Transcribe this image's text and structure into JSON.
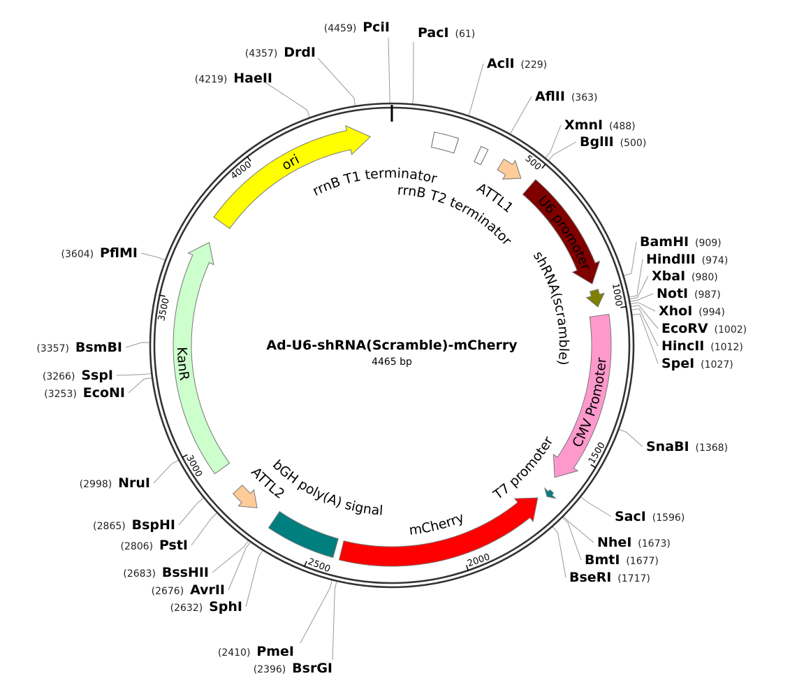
{
  "plasmid": {
    "name": "Ad-U6-shRNA(Scramble)-mCherry",
    "length_label": "4465 bp",
    "length_bp": 4465
  },
  "features": [
    {
      "name": "ori",
      "start": 3792,
      "end": 4392,
      "direction": "forward",
      "shape": "arrow",
      "color": "#ffff00",
      "label_color": "#000000"
    },
    {
      "name": "rrnB T1 terminator",
      "start": 140,
      "end": 222,
      "direction": "none",
      "shape": "box",
      "color": "#ffffff",
      "label_color": "#000000"
    },
    {
      "name": "rrnB T2 terminator",
      "start": 300,
      "end": 325,
      "direction": "none",
      "shape": "box",
      "color": "#ffffff",
      "label_color": "#000000"
    },
    {
      "name": "ATTL1",
      "start": 385,
      "end": 468,
      "direction": "forward",
      "shape": "arrow",
      "color": "#ffcc99",
      "label_color": "#000000"
    },
    {
      "name": "U6 promoter",
      "start": 508,
      "end": 905,
      "direction": "forward",
      "shape": "arrow",
      "color": "#800000",
      "label_color": "#ffffff"
    },
    {
      "name": "shRNA(scramble)",
      "start": 928,
      "end": 985,
      "direction": "forward",
      "shape": "arrow",
      "color": "#808000",
      "label_color": "#000000"
    },
    {
      "name": "CMV Promoter",
      "start": 1015,
      "end": 1600,
      "direction": "forward",
      "shape": "arrow",
      "color": "#ff99cc",
      "label_color": "#000000"
    },
    {
      "name": "T7 promoter",
      "start": 1642,
      "end": 1665,
      "direction": "forward",
      "shape": "arrow",
      "color": "#008080",
      "label_color": "#000000"
    },
    {
      "name": "mCherry",
      "start": 1690,
      "end": 2404,
      "direction": "reverse",
      "shape": "arrow",
      "color": "#ff0000",
      "label_color": "#000000"
    },
    {
      "name": "bGH poly(A) signal",
      "start": 2425,
      "end": 2655,
      "direction": "none",
      "shape": "box",
      "color": "#007f7f",
      "label_color": "#000000"
    },
    {
      "name": "ATTL2",
      "start": 2725,
      "end": 2815,
      "direction": "reverse",
      "shape": "arrow",
      "color": "#ffcc99",
      "label_color": "#000000"
    },
    {
      "name": "KanR",
      "start": 2903,
      "end": 3713,
      "direction": "forward",
      "shape": "arrow",
      "color": "#ccffcc",
      "label_color": "#000000"
    }
  ],
  "sites": [
    {
      "name": "PciI",
      "position": 4459
    },
    {
      "name": "PacI",
      "position": 61
    },
    {
      "name": "AclI",
      "position": 229
    },
    {
      "name": "AflII",
      "position": 363
    },
    {
      "name": "XmnI",
      "position": 488
    },
    {
      "name": "BglII",
      "position": 500
    },
    {
      "name": "BamHI",
      "position": 909
    },
    {
      "name": "HindIII",
      "position": 974
    },
    {
      "name": "XbaI",
      "position": 980
    },
    {
      "name": "NotI",
      "position": 987
    },
    {
      "name": "XhoI",
      "position": 994
    },
    {
      "name": "EcoRV",
      "position": 1002
    },
    {
      "name": "HincII",
      "position": 1012
    },
    {
      "name": "SpeI",
      "position": 1027
    },
    {
      "name": "SnaBI",
      "position": 1368
    },
    {
      "name": "SacI",
      "position": 1596
    },
    {
      "name": "NheI",
      "position": 1673
    },
    {
      "name": "BmtI",
      "position": 1677
    },
    {
      "name": "BseRI",
      "position": 1717
    },
    {
      "name": "BsrGI",
      "position": 2396
    },
    {
      "name": "PmeI",
      "position": 2410
    },
    {
      "name": "SphI",
      "position": 2632
    },
    {
      "name": "AvrII",
      "position": 2676
    },
    {
      "name": "BssHII",
      "position": 2683
    },
    {
      "name": "PstI",
      "position": 2806
    },
    {
      "name": "BspHI",
      "position": 2865
    },
    {
      "name": "NruI",
      "position": 2998
    },
    {
      "name": "EcoNI",
      "position": 3253
    },
    {
      "name": "SspI",
      "position": 3266
    },
    {
      "name": "BsmBI",
      "position": 3357
    },
    {
      "name": "PflMI",
      "position": 3604
    },
    {
      "name": "HaeII",
      "position": 4219
    },
    {
      "name": "DrdI",
      "position": 4357
    }
  ],
  "ticks": [
    "500",
    "1000",
    "1500",
    "2000",
    "2500",
    "3000",
    "3500",
    "4000"
  ]
}
